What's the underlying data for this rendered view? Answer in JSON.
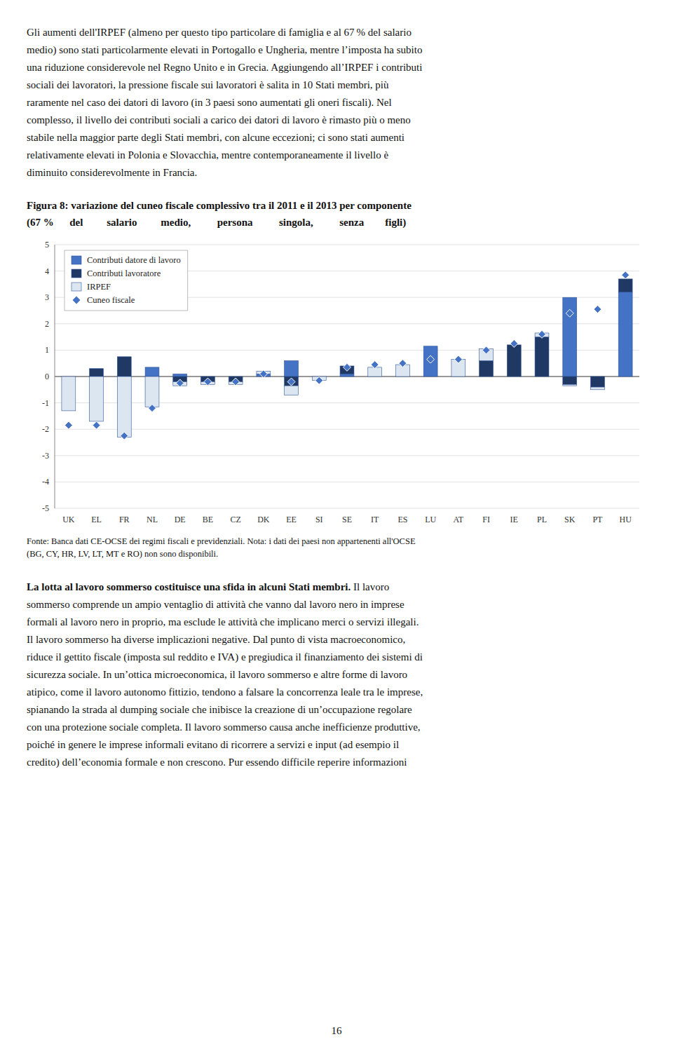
{
  "text_above": [
    "Gli aumenti dell'IRPEF (almeno per questo tipo particolare di famiglia e al 67 % del salario",
    "medio) sono stati particolarmente elevati in Portogallo e Ungheria, mentre l’imposta ha subito",
    "una riduzione considerevole nel Regno Unito e in Grecia. Aggiungendo all’IRPEF i contributi",
    "sociali dei lavoratori, la pressione fiscale sui lavoratori è salita in 10 Stati membri, più",
    "raramente nel caso dei datori di lavoro (in 3 paesi sono aumentati gli oneri fiscali). Nel",
    "complesso, il livello dei contributi sociali a carico dei datori di lavoro è rimasto più o meno",
    "stabile nella maggior parte degli Stati membri, con alcune eccezioni; ci sono stati aumenti",
    "relativamente elevati in Polonia e Slovacchia, mentre contemporaneamente il livello è",
    "diminuito considerevolmente in Francia."
  ],
  "chart_data": {
    "type": "bar",
    "title": "Figura 8: variazione del cuneo fiscale complessivo tra il 2011 e il 2013 per componente",
    "subtitle": "(67 %      del         salario         medio,          persona          singola,          senza        figli)",
    "categories": [
      "UK",
      "EL",
      "FR",
      "NL",
      "DE",
      "BE",
      "CZ",
      "DK",
      "EE",
      "SI",
      "SE",
      "IT",
      "ES",
      "LU",
      "AT",
      "FI",
      "IE",
      "PL",
      "SK",
      "PT",
      "HU"
    ],
    "series": [
      {
        "name": "Contributi datore di lavoro",
        "type": "bar",
        "color": "#4472c4",
        "values": [
          0.0,
          0.0,
          0.0,
          0.35,
          0.1,
          0.0,
          0.0,
          0.1,
          0.6,
          0.0,
          0.1,
          0.0,
          0.0,
          1.15,
          0.0,
          0.0,
          0.0,
          0.0,
          3.0,
          0.0,
          3.2
        ]
      },
      {
        "name": "Contributi lavoratore",
        "type": "bar",
        "color": "#1f3864",
        "values": [
          0.0,
          0.3,
          0.75,
          0.0,
          -0.2,
          -0.2,
          -0.2,
          0.0,
          -0.35,
          0.0,
          0.3,
          0.0,
          0.0,
          0.0,
          0.0,
          0.6,
          1.2,
          1.5,
          -0.3,
          -0.4,
          0.5
        ]
      },
      {
        "name": "IRPEF",
        "type": "bar",
        "color": "#dce6f1",
        "values": [
          -1.3,
          -1.7,
          -2.3,
          -1.15,
          -0.15,
          -0.1,
          -0.1,
          0.1,
          -0.35,
          -0.15,
          0.0,
          0.35,
          0.45,
          0.0,
          0.65,
          0.45,
          0.0,
          0.15,
          -0.05,
          -0.1,
          0.0
        ]
      },
      {
        "name": "Cuneo fiscale",
        "type": "scatter",
        "marker": "diamond",
        "color": "#4472c4",
        "values": [
          -1.85,
          -1.85,
          -2.25,
          -1.2,
          -0.25,
          -0.2,
          -0.2,
          0.1,
          -0.2,
          -0.15,
          0.35,
          0.45,
          0.5,
          0.65,
          0.65,
          1.0,
          1.25,
          1.6,
          2.4,
          2.55,
          3.85
        ]
      }
    ],
    "stacked": true,
    "ylim": [
      -5,
      5
    ],
    "yticks": [
      -5,
      -4,
      -3,
      -2,
      -1,
      0,
      1,
      2,
      3,
      4,
      5
    ],
    "grid": true,
    "legend": "upper left"
  },
  "source": [
    "Fonte: Banca dati CE-OCSE dei regimi fiscali e previdenziali. Nota: i dati dei paesi non appartenenti all'OCSE",
    "(BG, CY, HR, LV, LT, MT e RO) non sono disponibili."
  ],
  "text_below_bold": "La lotta al lavoro sommerso costituisce una sfida in alcuni Stati membri.",
  "text_below_first": " Il lavoro",
  "text_below": [
    "sommerso comprende un ampio ventaglio di attività che vanno dal lavoro nero in imprese",
    "formali al lavoro nero in proprio, ma esclude le attività che implicano merci o servizi illegali.",
    "Il lavoro sommerso ha diverse implicazioni negative. Dal punto di vista macroeconomico,",
    "riduce il gettito fiscale (imposta sul reddito e IVA) e pregiudica il finanziamento dei sistemi di",
    "sicurezza sociale. In un’ottica microeconomica, il lavoro sommerso e altre forme di lavoro",
    "atipico, come il lavoro autonomo fittizio, tendono a falsare la concorrenza leale tra le imprese,",
    "spianando la strada al dumping sociale che inibisce la creazione di un’occupazione regolare",
    "con una protezione sociale completa. Il lavoro sommerso causa anche inefficienze produttive,",
    "poiché in genere le imprese informali evitano di ricorrere a servizi e input (ad esempio il",
    "credito) dell’economia formale e non crescono. Pur essendo difficile reperire informazioni"
  ],
  "page_number": "16"
}
